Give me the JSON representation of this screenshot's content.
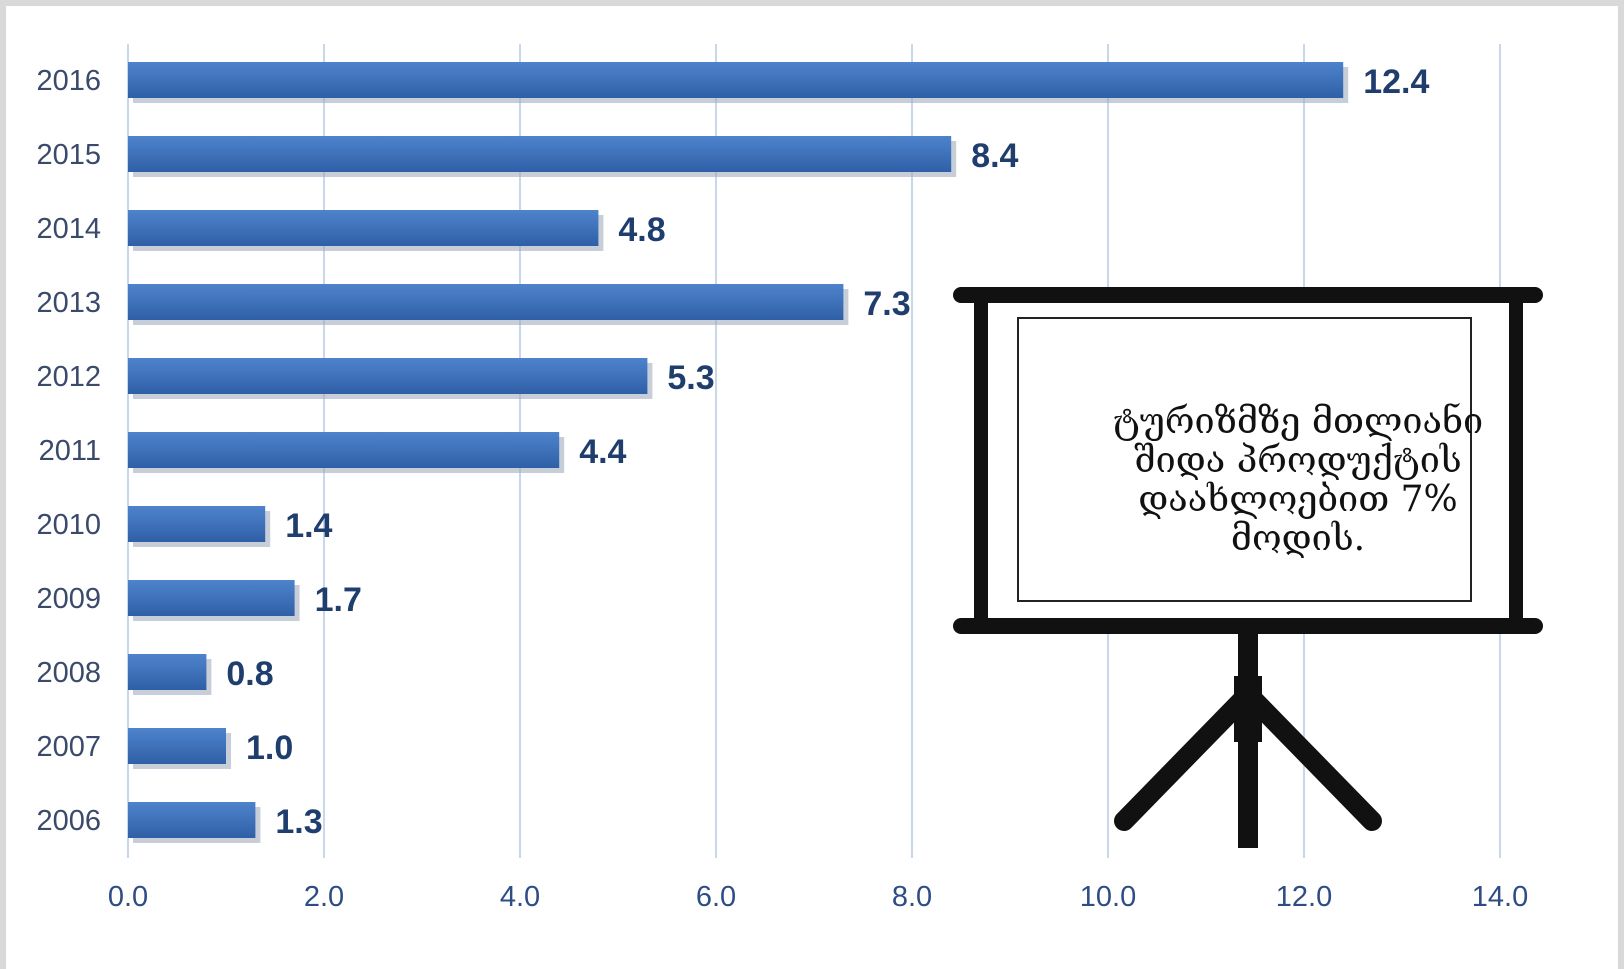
{
  "chart_data": {
    "type": "bar",
    "orientation": "horizontal",
    "categories": [
      "2016",
      "2015",
      "2014",
      "2013",
      "2012",
      "2011",
      "2010",
      "2009",
      "2008",
      "2007",
      "2006"
    ],
    "values": [
      12.4,
      8.4,
      4.8,
      7.3,
      5.3,
      4.4,
      1.4,
      1.7,
      0.8,
      1.0,
      1.3
    ],
    "data_labels": [
      "12.4",
      "8.4",
      "4.8",
      "7.3",
      "5.3",
      "4.4",
      "1.4",
      "1.7",
      "0.8",
      "1.0",
      "1.3"
    ],
    "x_ticks": [
      "0.0",
      "2.0",
      "4.0",
      "6.0",
      "8.0",
      "10.0",
      "12.0",
      "14.0"
    ],
    "xlim": [
      0,
      14
    ],
    "grid": "vertical",
    "bar_color": "#3a6cb5",
    "bar_color_light": "#4e84cc",
    "grid_color": "#c9d7ea",
    "title": "",
    "xlabel": "",
    "ylabel": ""
  },
  "callout": {
    "text": "ტურიზმზე მთლიანი შიდა პროდუქტის დაახლოებით 7% მოდის.",
    "icon": "presentation-board-icon"
  }
}
